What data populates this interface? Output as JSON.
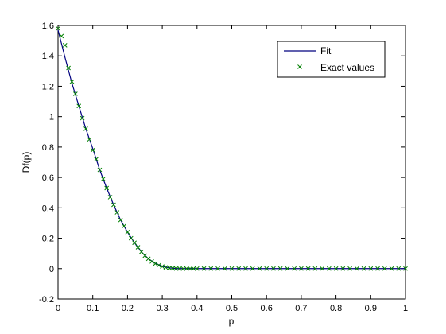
{
  "chart_data": {
    "type": "line",
    "xlabel": "p",
    "ylabel": "Df(p)",
    "xlim": [
      0,
      1
    ],
    "ylim": [
      -0.2,
      1.6
    ],
    "grid": false,
    "legend_placement": "top-right",
    "x_ticks": [
      "0",
      "0.1",
      "0.2",
      "0.3",
      "0.4",
      "0.5",
      "0.6",
      "0.7",
      "0.8",
      "0.9",
      "1"
    ],
    "y_ticks": [
      "-0.2",
      "0",
      "0.2",
      "0.4",
      "0.6",
      "0.8",
      "1",
      "1.2",
      "1.4",
      "1.6"
    ],
    "series": [
      {
        "name": "Fit",
        "style": "line",
        "color": "#00007f",
        "x": [
          0,
          0.02,
          0.04,
          0.06,
          0.08,
          0.1,
          0.12,
          0.14,
          0.16,
          0.18,
          0.2,
          0.22,
          0.24,
          0.26,
          0.28,
          0.3,
          0.32,
          0.34,
          0.36,
          0.4,
          0.5,
          0.6,
          0.7,
          0.8,
          0.9,
          1.0
        ],
        "y": [
          1.57,
          1.39,
          1.22,
          1.07,
          0.92,
          0.79,
          0.65,
          0.53,
          0.42,
          0.32,
          0.24,
          0.17,
          0.11,
          0.065,
          0.035,
          0.015,
          0.005,
          0.0,
          0.0,
          0.0,
          0.0,
          0.0,
          0.0,
          0.0,
          0.0,
          0.0
        ]
      },
      {
        "name": "Exact values",
        "style": "marker-x",
        "color": "#008000",
        "x": [
          0,
          0.01,
          0.02,
          0.03,
          0.04,
          0.05,
          0.06,
          0.07,
          0.08,
          0.09,
          0.1,
          0.11,
          0.12,
          0.13,
          0.14,
          0.15,
          0.16,
          0.17,
          0.18,
          0.19,
          0.2,
          0.21,
          0.22,
          0.23,
          0.24,
          0.25,
          0.26,
          0.27,
          0.28,
          0.29,
          0.3,
          0.31,
          0.32,
          0.33,
          0.34,
          0.35,
          0.36,
          0.37,
          0.38,
          0.39,
          0.4,
          0.42,
          0.44,
          0.46,
          0.48,
          0.5,
          0.52,
          0.54,
          0.56,
          0.58,
          0.6,
          0.62,
          0.64,
          0.66,
          0.68,
          0.7,
          0.72,
          0.74,
          0.76,
          0.78,
          0.8,
          0.82,
          0.84,
          0.86,
          0.88,
          0.9,
          0.92,
          0.94,
          0.96,
          0.98,
          1.0
        ],
        "y": [
          1.58,
          1.53,
          1.47,
          1.32,
          1.23,
          1.15,
          1.07,
          0.99,
          0.92,
          0.85,
          0.78,
          0.72,
          0.65,
          0.59,
          0.53,
          0.47,
          0.42,
          0.37,
          0.32,
          0.28,
          0.24,
          0.2,
          0.17,
          0.14,
          0.11,
          0.085,
          0.065,
          0.047,
          0.033,
          0.022,
          0.014,
          0.008,
          0.004,
          0.002,
          0.0,
          0.0,
          0.0,
          0.0,
          0.0,
          0.0,
          0.0,
          0.0,
          0.0,
          0.0,
          0.0,
          0.0,
          0.0,
          0.0,
          0.0,
          0.0,
          0.0,
          0.0,
          0.0,
          0.0,
          0.0,
          0.0,
          0.0,
          0.0,
          0.0,
          0.0,
          0.0,
          0.0,
          0.0,
          0.0,
          0.0,
          0.0,
          0.0,
          0.0,
          0.0,
          0.0,
          0.0
        ]
      }
    ]
  }
}
